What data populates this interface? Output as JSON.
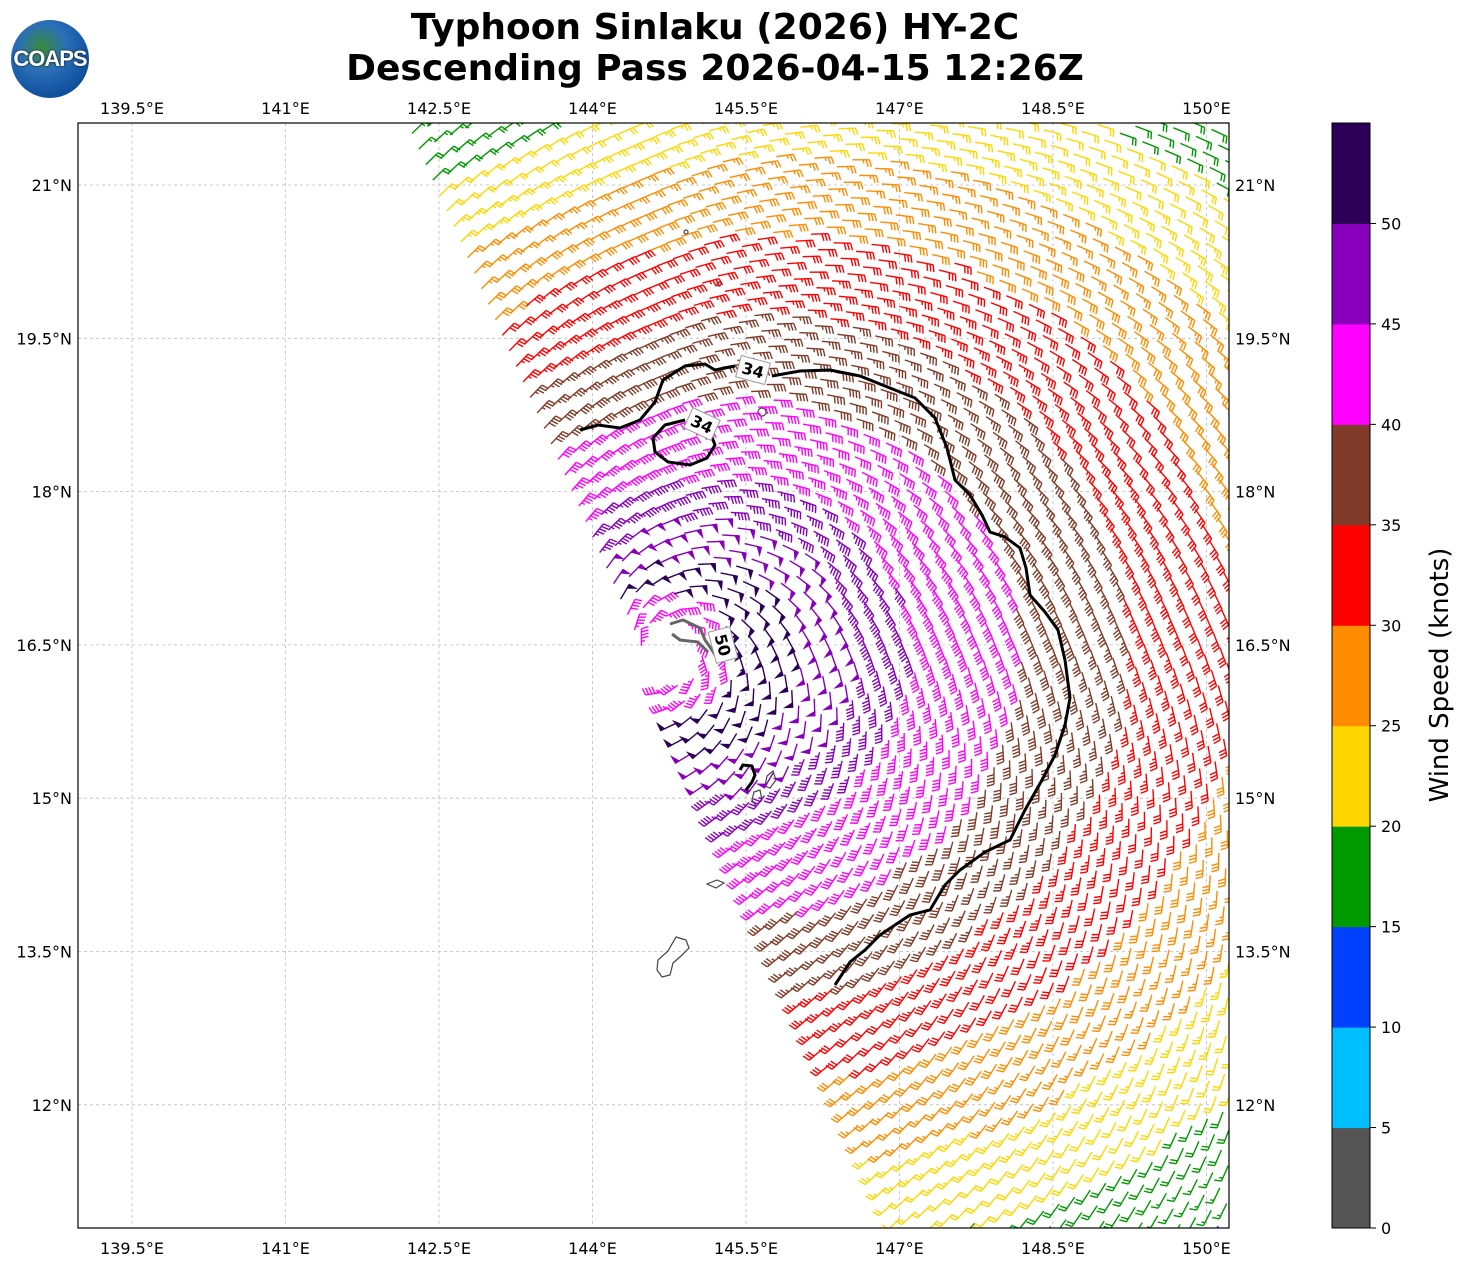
{
  "header": {
    "title_line1": "Typhoon Sinlaku (2026) HY-2C",
    "title_line2": "Descending Pass 2026-04-15 12:26Z",
    "logo_text": "COAPS"
  },
  "chart_data": {
    "type": "wind-barb-map",
    "title": "Typhoon Sinlaku (2026) HY-2C Descending Pass 2026-04-15 12:26Z",
    "xlim": [
      138.97,
      150.2
    ],
    "ylim": [
      10.8,
      21.6
    ],
    "x_ticks": [
      "139.5°E",
      "141°E",
      "142.5°E",
      "144°E",
      "145.5°E",
      "147°E",
      "148.5°E",
      "150°E"
    ],
    "x_tick_values": [
      139.5,
      141,
      142.5,
      144,
      145.5,
      147,
      148.5,
      150
    ],
    "y_ticks": [
      "21°N",
      "19.5°N",
      "18°N",
      "16.5°N",
      "15°N",
      "13.5°N",
      "12°N"
    ],
    "y_tick_values": [
      21,
      19.5,
      18,
      16.5,
      15,
      13.5,
      12
    ],
    "grid": true,
    "storm_center": {
      "lon": 144.75,
      "lat": 16.4
    },
    "contours": [
      {
        "label": "34",
        "level": 34
      },
      {
        "label": "34",
        "level": 34,
        "second": true
      },
      {
        "label": "50",
        "level": 50
      }
    ],
    "colorbar": {
      "label": "Wind Speed (knots)",
      "ticks": [
        "0",
        "5",
        "10",
        "15",
        "20",
        "25",
        "30",
        "35",
        "40",
        "45",
        "50"
      ],
      "bins": [
        {
          "min": 0,
          "max": 5,
          "color": "#555555"
        },
        {
          "min": 5,
          "max": 10,
          "color": "#00bfff"
        },
        {
          "min": 10,
          "max": 15,
          "color": "#0040ff"
        },
        {
          "min": 15,
          "max": 20,
          "color": "#009900"
        },
        {
          "min": 20,
          "max": 25,
          "color": "#ffd700"
        },
        {
          "min": 25,
          "max": 30,
          "color": "#ff8c00"
        },
        {
          "min": 30,
          "max": 35,
          "color": "#ff0000"
        },
        {
          "min": 35,
          "max": 40,
          "color": "#803c28"
        },
        {
          "min": 40,
          "max": 45,
          "color": "#ff00ff"
        },
        {
          "min": 45,
          "max": 50,
          "color": "#8800bb"
        },
        {
          "min": 50,
          "max": 55,
          "color": "#2d0058"
        }
      ]
    }
  }
}
